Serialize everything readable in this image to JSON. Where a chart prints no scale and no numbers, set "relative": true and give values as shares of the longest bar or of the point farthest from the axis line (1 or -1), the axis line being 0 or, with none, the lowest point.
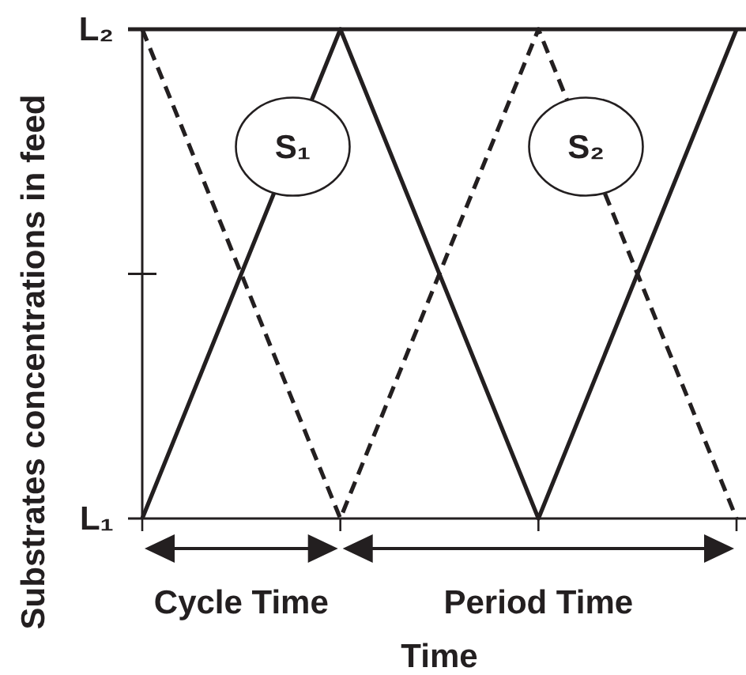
{
  "chart_data": {
    "type": "line",
    "relative": true,
    "xlabel": "Time",
    "ylabel": "Substrates concentrations in feed",
    "categories": [
      null,
      null,
      null,
      null
    ],
    "series": [
      {
        "name": "S₁",
        "color": "#231f20",
        "line_style": "solid",
        "values": [
          0,
          1,
          0,
          1
        ]
      },
      {
        "name": "S₂",
        "color": "#231f20",
        "line_style": "dashed",
        "values": [
          1,
          0,
          1,
          0
        ]
      }
    ],
    "ref_lines": [
      {
        "axis": "y",
        "value": 1,
        "label": "L₂"
      }
    ],
    "annotations": [
      "L₁",
      "Cycle Time",
      "Period Time"
    ]
  }
}
